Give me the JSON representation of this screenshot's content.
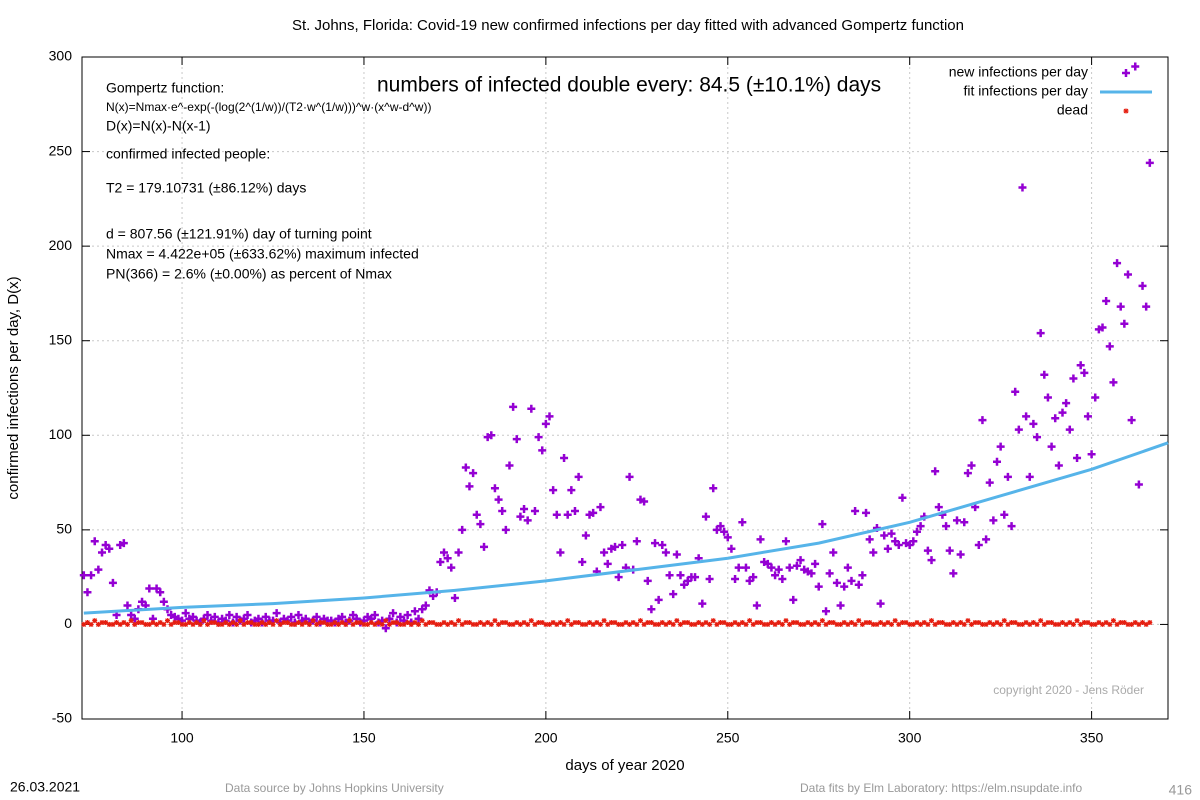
{
  "chart_data": {
    "type": "scatter",
    "title": "St. Johns,  Florida: Covid-19 new confirmed infections per day fitted with advanced Gompertz function",
    "x_label": "days of year 2020",
    "y_label": "confirmed infections per day, D(x)",
    "xlim": [
      72.5,
      371
    ],
    "ylim": [
      -50,
      300
    ],
    "xticks": [
      100,
      150,
      200,
      250,
      300,
      350
    ],
    "yticks": [
      -50,
      0,
      50,
      100,
      150,
      200,
      250,
      300
    ],
    "grid": true,
    "legend": "top-right",
    "x": [
      73,
      74,
      75,
      76,
      77,
      78,
      79,
      80,
      81,
      82,
      83,
      84,
      85,
      86,
      87,
      88,
      89,
      90,
      91,
      92,
      93,
      94,
      95,
      96,
      97,
      98,
      99,
      100,
      101,
      102,
      103,
      104,
      105,
      106,
      107,
      108,
      109,
      110,
      111,
      112,
      113,
      114,
      115,
      116,
      117,
      118,
      119,
      120,
      121,
      122,
      123,
      124,
      125,
      126,
      127,
      128,
      129,
      130,
      131,
      132,
      133,
      134,
      135,
      136,
      137,
      138,
      139,
      140,
      141,
      142,
      143,
      144,
      145,
      146,
      147,
      148,
      149,
      150,
      151,
      152,
      153,
      154,
      155,
      156,
      157,
      158,
      159,
      160,
      161,
      162,
      163,
      164,
      165,
      166,
      167,
      168,
      169,
      170,
      171,
      172,
      173,
      174,
      175,
      176,
      177,
      178,
      179,
      180,
      181,
      182,
      183,
      184,
      185,
      186,
      187,
      188,
      189,
      190,
      191,
      192,
      193,
      194,
      195,
      196,
      197,
      198,
      199,
      200,
      201,
      202,
      203,
      204,
      205,
      206,
      207,
      208,
      209,
      210,
      211,
      212,
      213,
      214,
      215,
      216,
      217,
      218,
      219,
      220,
      221,
      222,
      223,
      224,
      225,
      226,
      227,
      228,
      229,
      230,
      231,
      232,
      233,
      234,
      235,
      236,
      237,
      238,
      239,
      240,
      241,
      242,
      243,
      244,
      245,
      246,
      247,
      248,
      249,
      250,
      251,
      252,
      253,
      254,
      255,
      256,
      257,
      258,
      259,
      260,
      261,
      262,
      263,
      264,
      265,
      266,
      267,
      268,
      269,
      270,
      271,
      272,
      273,
      274,
      275,
      276,
      277,
      278,
      279,
      280,
      281,
      282,
      283,
      284,
      285,
      286,
      287,
      288,
      289,
      290,
      291,
      292,
      293,
      294,
      295,
      296,
      297,
      298,
      299,
      300,
      301,
      302,
      303,
      304,
      305,
      306,
      307,
      308,
      309,
      310,
      311,
      312,
      313,
      314,
      315,
      316,
      317,
      318,
      319,
      320,
      321,
      322,
      323,
      324,
      325,
      326,
      327,
      328,
      329,
      330,
      331,
      332,
      333,
      334,
      335,
      336,
      337,
      338,
      339,
      340,
      341,
      342,
      343,
      344,
      345,
      346,
      347,
      348,
      349,
      350,
      351,
      352,
      353,
      354,
      355,
      356,
      357,
      358,
      359,
      360,
      361,
      362,
      363,
      364,
      365,
      366
    ],
    "series": [
      {
        "name": "new infections per day",
        "color": "#9400d3",
        "marker": "plus",
        "values": [
          26,
          17,
          26,
          44,
          29,
          38,
          42,
          40,
          22,
          5,
          42,
          43,
          10,
          5,
          3,
          8,
          12,
          10,
          19,
          3,
          19,
          17,
          12,
          8,
          5,
          4,
          3,
          2,
          6,
          3,
          4,
          2,
          1,
          3,
          5,
          2,
          4,
          1,
          3,
          2,
          5,
          1,
          4,
          2,
          3,
          5,
          1,
          2,
          3,
          1,
          4,
          2,
          2,
          6,
          1,
          3,
          2,
          4,
          1,
          5,
          2,
          3,
          1,
          2,
          4,
          1,
          3,
          2,
          2,
          1,
          3,
          4,
          1,
          2,
          5,
          3,
          1,
          2,
          4,
          3,
          5,
          1,
          2,
          -2,
          3,
          6,
          1,
          4,
          2,
          5,
          1,
          7,
          3,
          8,
          10,
          18,
          15,
          17,
          33,
          38,
          35,
          30,
          14,
          38,
          50,
          83,
          73,
          80,
          58,
          53,
          41,
          99,
          100,
          72,
          66,
          60,
          50,
          84,
          115,
          98,
          57,
          61,
          55,
          114,
          60,
          99,
          92,
          106,
          110,
          71,
          58,
          38,
          88,
          58,
          71,
          60,
          78,
          33,
          47,
          58,
          59,
          28,
          62,
          38,
          32,
          40,
          41,
          25,
          42,
          30,
          78,
          29,
          44,
          66,
          65,
          23,
          8,
          43,
          13,
          42,
          38,
          26,
          16,
          37,
          26,
          21,
          23,
          25,
          25,
          35,
          11,
          57,
          24,
          72,
          50,
          52,
          49,
          46,
          40,
          24,
          30,
          54,
          30,
          23,
          25,
          10,
          45,
          33,
          32,
          30,
          26,
          29,
          24,
          44,
          30,
          13,
          31,
          34,
          29,
          28,
          27,
          32,
          20,
          53,
          7,
          27,
          38,
          22,
          10,
          20,
          30,
          23,
          60,
          21,
          26,
          59,
          45,
          38,
          51,
          11,
          47,
          40,
          48,
          44,
          42,
          67,
          43,
          42,
          44,
          49,
          52,
          57,
          39,
          34,
          81,
          62,
          58,
          52,
          39,
          27,
          55,
          37,
          54,
          80,
          84,
          62,
          42,
          108,
          45,
          75,
          55,
          86,
          94,
          58,
          78,
          52,
          123,
          103,
          231,
          110,
          78,
          106,
          99,
          154,
          132,
          120,
          94,
          109,
          84,
          112,
          117,
          103,
          130,
          88,
          137,
          133,
          110,
          90,
          120,
          156,
          157,
          171,
          147,
          128,
          191,
          168,
          159,
          185,
          108,
          295,
          74,
          179,
          168,
          244
        ]
      },
      {
        "name": "fit infections per day",
        "color": "#56b4e9",
        "marker": "line",
        "x": [
          73,
          100,
          125,
          150,
          175,
          200,
          225,
          250,
          275,
          300,
          325,
          350,
          371
        ],
        "values": [
          6,
          9,
          11,
          14,
          18,
          23,
          29,
          35,
          43,
          54,
          68,
          82,
          96
        ]
      },
      {
        "name": "dead",
        "color": "#e51e10",
        "marker": "star",
        "values": [
          0,
          1,
          0,
          2,
          0,
          1,
          1,
          0,
          0,
          1,
          0,
          1,
          0,
          2,
          0,
          1,
          1,
          0,
          0,
          1,
          0,
          1,
          0,
          2,
          0,
          1,
          1,
          0,
          0,
          1,
          0,
          1,
          0,
          2,
          0,
          1,
          1,
          0,
          0,
          1,
          0,
          1,
          0,
          2,
          0,
          1,
          1,
          0,
          0,
          1,
          0,
          1,
          0,
          2,
          0,
          1,
          1,
          0,
          0,
          1,
          0,
          1,
          0,
          2,
          0,
          1,
          1,
          0,
          0,
          1,
          0,
          1,
          0,
          2,
          0,
          1,
          1,
          0,
          0,
          1,
          0,
          1,
          0,
          2,
          0,
          1,
          1,
          0,
          0,
          1,
          0,
          1,
          0,
          2,
          0,
          1,
          1,
          0,
          0,
          1,
          0,
          1,
          0,
          2,
          0,
          1,
          1,
          0,
          0,
          1,
          0,
          1,
          0,
          2,
          0,
          1,
          1,
          0,
          0,
          1,
          0,
          1,
          0,
          2,
          0,
          1,
          1,
          0,
          0,
          1,
          0,
          1,
          0,
          2,
          0,
          1,
          1,
          0,
          0,
          1,
          0,
          1,
          0,
          2,
          0,
          1,
          1,
          0,
          0,
          1,
          0,
          1,
          0,
          2,
          0,
          1,
          1,
          0,
          0,
          1,
          0,
          1,
          0,
          2,
          0,
          1,
          1,
          0,
          0,
          1,
          0,
          1,
          0,
          2,
          0,
          1,
          1,
          0,
          0,
          1,
          0,
          1,
          0,
          2,
          0,
          1,
          1,
          0,
          0,
          1,
          0,
          1,
          0,
          2,
          0,
          1,
          1,
          0,
          0,
          1,
          0,
          1,
          0,
          2,
          0,
          1,
          1,
          0,
          0,
          1,
          0,
          1,
          0,
          2,
          0,
          1,
          1,
          0,
          0,
          1,
          0,
          1,
          0,
          2,
          0,
          1,
          1,
          0,
          0,
          1,
          0,
          1,
          0,
          2,
          0,
          1,
          1,
          0,
          0,
          1,
          0,
          1,
          0,
          2,
          0,
          1,
          1,
          0,
          0,
          1,
          0,
          1,
          0,
          2,
          0,
          1,
          1,
          0,
          0,
          1,
          0,
          1,
          0,
          2,
          0,
          1,
          1,
          0,
          0,
          1,
          0,
          1,
          0,
          2,
          0,
          1,
          1,
          0,
          0,
          1,
          0,
          1,
          0,
          2,
          0,
          1,
          1,
          0,
          0,
          1,
          0,
          1,
          0,
          1
        ]
      }
    ],
    "headline": {
      "text": "numbers of infected double every: 84.5 (±10.1%) days",
      "color": "#9b30d0"
    },
    "annotations": [
      {
        "text": "Gompertz function:",
        "color": "#9b30d0"
      },
      {
        "text": "N(x)=Nmax·e^-exp(-(log(2^(1/w))/(T2·w^(1/w)))^w·(x^w-d^w))",
        "color": "#9b30d0"
      },
      {
        "text": "D(x)=N(x)-N(x-1)",
        "color": "#9b30d0"
      },
      {
        "text": "confirmed infected people:",
        "color": "#56b4e9"
      },
      {
        "text": "T2 = 179.10731 (±86.12%) days",
        "color": "#e51e10"
      },
      {
        "text": "d = 807.56 (±121.91%) day of turning point",
        "color": "#56b4e9"
      },
      {
        "text": "Nmax = 4.422e+05 (±633.62%) maximum infected",
        "color": "#56b4e9"
      },
      {
        "text": "PN(366) = 2.6% (±0.00%) as percent of Nmax",
        "color": "#56b4e9"
      }
    ],
    "copyright": "copyright 2020 - Jens Röder",
    "date": "26.03.2021",
    "source": "Data source by Johns Hopkins University",
    "fits": "Data fits by Elm Laboratory: https://elm.nsupdate.info",
    "page_number": "416"
  }
}
